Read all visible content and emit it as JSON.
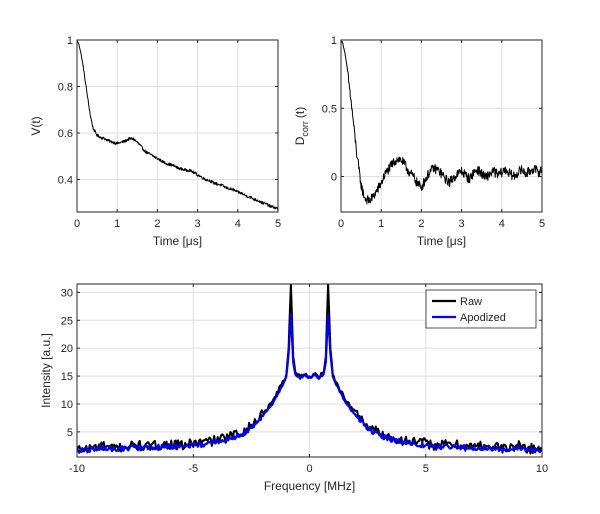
{
  "colors": {
    "background": "#ffffff",
    "axes": "#262626",
    "grid": "#dfdfdf",
    "raw": "#000000",
    "apodized": "#0000ff"
  },
  "chart_data": [
    {
      "type": "line",
      "xlabel": "Time [μs]",
      "ylabel": "V(t)",
      "xlim": [
        0,
        5
      ],
      "ylim": [
        0.26,
        1.0
      ],
      "xticks": [
        0,
        1,
        2,
        3,
        4,
        5
      ],
      "yticks": [
        0.4,
        0.6,
        0.8,
        1
      ],
      "ytick_labels": [
        "0.4",
        "0.6",
        "0.8",
        "1"
      ],
      "grid": true,
      "noise": 0.006,
      "series": [
        {
          "color": "#000000",
          "x": [
            0,
            0.05,
            0.1,
            0.15,
            0.2,
            0.25,
            0.3,
            0.35,
            0.4,
            0.45,
            0.5,
            0.6,
            0.7,
            0.8,
            0.9,
            1.0,
            1.1,
            1.2,
            1.3,
            1.4,
            1.5,
            1.6,
            1.7,
            1.8,
            1.9,
            2.0,
            2.1,
            2.2,
            2.3,
            2.4,
            2.5,
            2.6,
            2.7,
            2.8,
            2.9,
            3.0,
            3.1,
            3.2,
            3.3,
            3.4,
            3.5,
            3.6,
            3.7,
            3.8,
            3.9,
            4.0,
            4.1,
            4.2,
            4.3,
            4.4,
            4.5,
            4.6,
            4.7,
            4.8,
            4.9,
            5.0
          ],
          "y": [
            1.0,
            0.98,
            0.94,
            0.89,
            0.83,
            0.77,
            0.71,
            0.66,
            0.62,
            0.605,
            0.59,
            0.58,
            0.575,
            0.565,
            0.56,
            0.555,
            0.56,
            0.565,
            0.575,
            0.575,
            0.56,
            0.54,
            0.52,
            0.51,
            0.5,
            0.49,
            0.48,
            0.47,
            0.465,
            0.46,
            0.45,
            0.445,
            0.44,
            0.44,
            0.43,
            0.42,
            0.41,
            0.4,
            0.395,
            0.385,
            0.38,
            0.375,
            0.365,
            0.36,
            0.355,
            0.345,
            0.34,
            0.33,
            0.325,
            0.315,
            0.31,
            0.3,
            0.295,
            0.285,
            0.28,
            0.275
          ]
        }
      ]
    },
    {
      "type": "line",
      "xlabel": "Time [μs]",
      "ylabel": "D",
      "ylabel_sub": "corr",
      "ylabel_suffix": "(t)",
      "xlim": [
        0,
        5
      ],
      "ylim": [
        -0.26,
        1.0
      ],
      "xticks": [
        0,
        1,
        2,
        3,
        4,
        5
      ],
      "yticks": [
        0,
        0.5,
        1
      ],
      "ytick_labels": [
        "0",
        "0.5",
        "1"
      ],
      "grid": true,
      "noise": 0.035,
      "series": [
        {
          "color": "#000000",
          "x": [
            0,
            0.05,
            0.1,
            0.15,
            0.2,
            0.25,
            0.3,
            0.35,
            0.4,
            0.45,
            0.5,
            0.55,
            0.6,
            0.7,
            0.8,
            0.9,
            1.0,
            1.1,
            1.2,
            1.3,
            1.4,
            1.5,
            1.6,
            1.7,
            1.8,
            1.9,
            2.0,
            2.1,
            2.2,
            2.3,
            2.4,
            2.5,
            2.6,
            2.7,
            2.8,
            2.9,
            3.0,
            3.1,
            3.2,
            3.3,
            3.4,
            3.5,
            3.6,
            3.7,
            3.8,
            3.9,
            4.0,
            4.1,
            4.2,
            4.3,
            4.4,
            4.5,
            4.6,
            4.7,
            4.8,
            4.9,
            5.0
          ],
          "y": [
            1.0,
            0.97,
            0.9,
            0.8,
            0.68,
            0.55,
            0.42,
            0.28,
            0.15,
            0.04,
            -0.06,
            -0.12,
            -0.16,
            -0.18,
            -0.15,
            -0.1,
            -0.05,
            0.02,
            0.06,
            0.1,
            0.13,
            0.12,
            0.08,
            0.03,
            0.0,
            -0.05,
            -0.08,
            -0.02,
            0.03,
            0.06,
            0.05,
            0.02,
            -0.02,
            -0.04,
            -0.01,
            0.02,
            0.04,
            0.01,
            -0.02,
            0.03,
            0.05,
            0.02,
            -0.01,
            0.02,
            0.04,
            0.01,
            0.03,
            0.05,
            0.02,
            0.0,
            0.03,
            0.05,
            0.02,
            0.04,
            0.06,
            0.03,
            0.05
          ]
        }
      ]
    },
    {
      "type": "line",
      "xlabel": "Frequency [MHz]",
      "ylabel": "Intensity [a.u.]",
      "xlim": [
        -10,
        10
      ],
      "ylim": [
        0.5,
        31.5
      ],
      "xticks": [
        -10,
        -5,
        0,
        5,
        10
      ],
      "yticks": [
        5,
        10,
        15,
        20,
        25,
        30
      ],
      "ytick_labels": [
        "5",
        "10",
        "15",
        "20",
        "25",
        "30"
      ],
      "grid": true,
      "legend": "top-right",
      "series": [
        {
          "name": "Raw",
          "color": "#000000",
          "x": [
            -10,
            -9.5,
            -9,
            -8.5,
            -8,
            -7.5,
            -7,
            -6.5,
            -6,
            -5.5,
            -5,
            -4.5,
            -4,
            -3.5,
            -3,
            -2.5,
            -2,
            -1.8,
            -1.6,
            -1.4,
            -1.2,
            -1.0,
            -0.9,
            -0.8,
            -0.7,
            -0.6,
            -0.5,
            -0.4,
            -0.3,
            -0.2,
            -0.1,
            0,
            0.1,
            0.2,
            0.3,
            0.4,
            0.5,
            0.6,
            0.7,
            0.8,
            0.9,
            1.0,
            1.2,
            1.4,
            1.6,
            1.8,
            2.0,
            2.5,
            3.0,
            3.5,
            4.0,
            4.5,
            5.0,
            5.5,
            6.0,
            6.5,
            7.0,
            7.5,
            8.0,
            8.5,
            9.0,
            9.5,
            10
          ],
          "y": [
            1.8,
            2.0,
            2.5,
            2.0,
            2.3,
            2.6,
            2.3,
            2.6,
            2.8,
            2.5,
            3.0,
            3.2,
            3.5,
            4.0,
            4.8,
            6.0,
            8.5,
            9.3,
            10.5,
            12.0,
            13.5,
            15.2,
            20.0,
            31.5,
            18.5,
            15.5,
            15.2,
            14.8,
            15.0,
            15.5,
            15.0,
            14.9,
            15.0,
            15.5,
            15.0,
            14.8,
            15.2,
            15.5,
            18.5,
            31.5,
            20.0,
            15.2,
            13.5,
            12.0,
            10.5,
            9.3,
            8.5,
            6.0,
            4.8,
            4.0,
            3.5,
            3.2,
            3.0,
            2.5,
            2.8,
            2.6,
            2.3,
            2.6,
            2.3,
            2.0,
            2.5,
            2.0,
            1.8
          ]
        },
        {
          "name": "Apodized",
          "color": "#0000ff",
          "x": [
            -10,
            -9.5,
            -9,
            -8.5,
            -8,
            -7.5,
            -7,
            -6.5,
            -6,
            -5.5,
            -5,
            -4.5,
            -4,
            -3.5,
            -3,
            -2.5,
            -2,
            -1.8,
            -1.6,
            -1.4,
            -1.2,
            -1.0,
            -0.9,
            -0.8,
            -0.7,
            -0.6,
            -0.5,
            -0.4,
            -0.3,
            -0.2,
            -0.1,
            0,
            0.1,
            0.2,
            0.3,
            0.4,
            0.5,
            0.6,
            0.7,
            0.8,
            0.9,
            1.0,
            1.2,
            1.4,
            1.6,
            1.8,
            2.0,
            2.5,
            3.0,
            3.5,
            4.0,
            4.5,
            5.0,
            5.5,
            6.0,
            6.5,
            7.0,
            7.5,
            8.0,
            8.5,
            9.0,
            9.5,
            10
          ],
          "y": [
            1.6,
            1.8,
            2.1,
            1.9,
            2.0,
            2.2,
            2.1,
            2.3,
            2.4,
            2.3,
            2.6,
            2.8,
            3.2,
            3.7,
            4.4,
            5.6,
            8.0,
            8.8,
            10.0,
            11.5,
            13.0,
            14.8,
            19.0,
            26.0,
            17.5,
            15.2,
            15.0,
            14.7,
            14.9,
            15.3,
            14.9,
            14.8,
            14.9,
            15.3,
            14.9,
            14.7,
            15.0,
            15.2,
            17.5,
            26.0,
            19.0,
            14.8,
            13.0,
            11.5,
            10.0,
            8.8,
            8.0,
            5.6,
            4.4,
            3.7,
            3.2,
            2.8,
            2.6,
            2.3,
            2.4,
            2.3,
            2.1,
            2.2,
            2.0,
            1.9,
            2.1,
            1.8,
            1.6
          ]
        }
      ]
    }
  ]
}
